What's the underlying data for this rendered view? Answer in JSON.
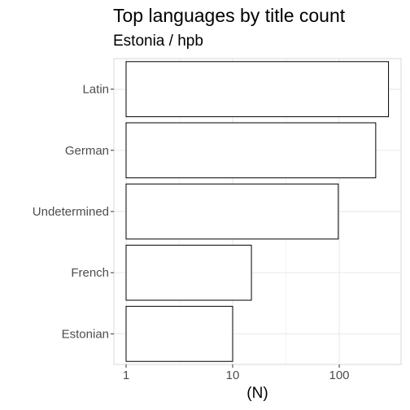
{
  "chart_data": {
    "type": "bar",
    "orientation": "horizontal",
    "title": "Top languages by title count",
    "subtitle": "Estonia / hpb",
    "xlabel": "(N)",
    "ylabel": "",
    "x_scale": "log10",
    "xlim": [
      1,
      300
    ],
    "x_ticks": [
      1,
      10,
      100
    ],
    "x_tick_labels": [
      "1",
      "10",
      "100"
    ],
    "grid": true,
    "categories": [
      "Latin",
      "German",
      "Undetermined",
      "French",
      "Estonian"
    ],
    "values": [
      290,
      220,
      98,
      15,
      10
    ],
    "colors": {
      "bar_fill": "#ffffff",
      "bar_stroke": "#000000",
      "grid": "#ebebeb",
      "panel_border": "#d9d9d9"
    }
  }
}
